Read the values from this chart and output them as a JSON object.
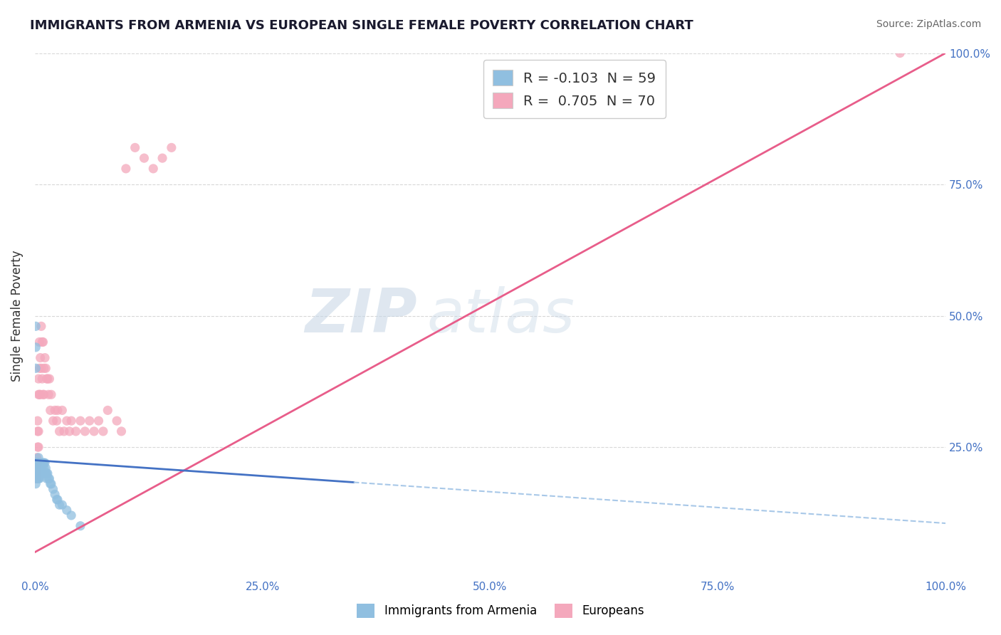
{
  "title": "IMMIGRANTS FROM ARMENIA VS EUROPEAN SINGLE FEMALE POVERTY CORRELATION CHART",
  "source": "Source: ZipAtlas.com",
  "ylabel": "Single Female Poverty",
  "watermark_zip": "ZIP",
  "watermark_atlas": "atlas",
  "legend_r_blue": "R = -0.103",
  "legend_n_blue": "N = 59",
  "legend_r_pink": "R =  0.705",
  "legend_n_pink": "N = 70",
  "blue_scatter_color": "#90bfe0",
  "pink_scatter_color": "#f4a8bc",
  "blue_line_color": "#4472c4",
  "pink_line_color": "#e85d8a",
  "blue_dashed_color": "#a8c8e8",
  "background_color": "#ffffff",
  "grid_color": "#d8d8d8",
  "title_color": "#1a1a2e",
  "source_color": "#666666",
  "axis_label_color": "#4472c4",
  "legend_r_color": "#4472c4",
  "legend_label_color": "#333333",
  "blue_scatter": {
    "x": [
      0.001,
      0.001,
      0.001,
      0.001,
      0.001,
      0.002,
      0.002,
      0.002,
      0.002,
      0.002,
      0.002,
      0.003,
      0.003,
      0.003,
      0.003,
      0.003,
      0.003,
      0.004,
      0.004,
      0.004,
      0.004,
      0.004,
      0.005,
      0.005,
      0.005,
      0.005,
      0.006,
      0.006,
      0.006,
      0.007,
      0.007,
      0.007,
      0.008,
      0.008,
      0.009,
      0.009,
      0.01,
      0.01,
      0.01,
      0.011,
      0.011,
      0.012,
      0.012,
      0.013,
      0.013,
      0.014,
      0.015,
      0.016,
      0.017,
      0.018,
      0.02,
      0.022,
      0.024,
      0.025,
      0.027,
      0.03,
      0.035,
      0.04,
      0.05
    ],
    "y": [
      0.48,
      0.44,
      0.4,
      0.22,
      0.18,
      0.22,
      0.21,
      0.21,
      0.2,
      0.2,
      0.19,
      0.22,
      0.22,
      0.21,
      0.2,
      0.2,
      0.19,
      0.23,
      0.22,
      0.21,
      0.2,
      0.19,
      0.22,
      0.21,
      0.2,
      0.19,
      0.21,
      0.21,
      0.2,
      0.22,
      0.21,
      0.2,
      0.22,
      0.21,
      0.22,
      0.2,
      0.22,
      0.21,
      0.2,
      0.22,
      0.2,
      0.21,
      0.2,
      0.2,
      0.19,
      0.2,
      0.19,
      0.19,
      0.18,
      0.18,
      0.17,
      0.16,
      0.15,
      0.15,
      0.14,
      0.14,
      0.13,
      0.12,
      0.1
    ]
  },
  "pink_scatter": {
    "x": [
      0.001,
      0.001,
      0.001,
      0.001,
      0.001,
      0.001,
      0.001,
      0.001,
      0.001,
      0.002,
      0.002,
      0.002,
      0.002,
      0.002,
      0.003,
      0.003,
      0.003,
      0.003,
      0.004,
      0.004,
      0.004,
      0.004,
      0.005,
      0.005,
      0.005,
      0.006,
      0.006,
      0.007,
      0.007,
      0.008,
      0.008,
      0.009,
      0.009,
      0.01,
      0.01,
      0.011,
      0.012,
      0.013,
      0.014,
      0.015,
      0.016,
      0.017,
      0.018,
      0.02,
      0.022,
      0.024,
      0.025,
      0.027,
      0.03,
      0.032,
      0.035,
      0.038,
      0.04,
      0.045,
      0.05,
      0.055,
      0.06,
      0.065,
      0.07,
      0.075,
      0.08,
      0.09,
      0.095,
      0.1,
      0.11,
      0.12,
      0.13,
      0.14,
      0.15,
      0.95
    ],
    "y": [
      0.22,
      0.22,
      0.22,
      0.21,
      0.21,
      0.21,
      0.2,
      0.2,
      0.19,
      0.23,
      0.22,
      0.21,
      0.2,
      0.19,
      0.3,
      0.28,
      0.25,
      0.22,
      0.38,
      0.35,
      0.28,
      0.25,
      0.45,
      0.4,
      0.35,
      0.42,
      0.35,
      0.48,
      0.4,
      0.45,
      0.38,
      0.45,
      0.35,
      0.4,
      0.35,
      0.42,
      0.4,
      0.38,
      0.38,
      0.35,
      0.38,
      0.32,
      0.35,
      0.3,
      0.32,
      0.3,
      0.32,
      0.28,
      0.32,
      0.28,
      0.3,
      0.28,
      0.3,
      0.28,
      0.3,
      0.28,
      0.3,
      0.28,
      0.3,
      0.28,
      0.32,
      0.3,
      0.28,
      0.78,
      0.82,
      0.8,
      0.78,
      0.8,
      0.82,
      1.0
    ]
  }
}
